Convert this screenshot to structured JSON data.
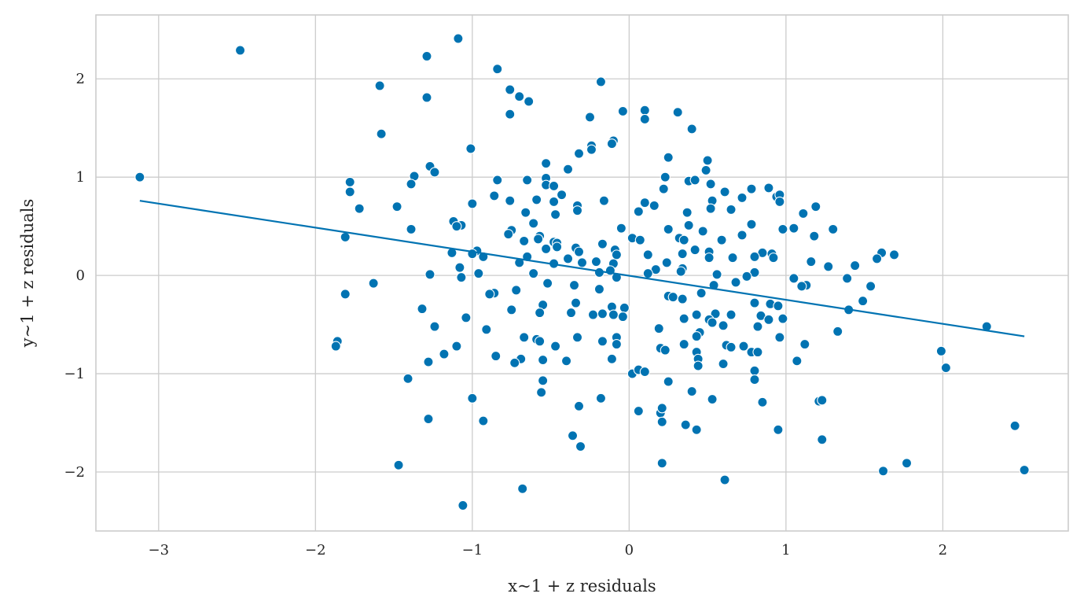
{
  "chart_data": {
    "type": "scatter",
    "xlabel": "x~1 + z residuals",
    "ylabel": "y~1 + z residuals",
    "xlim": [
      -3.4,
      2.8
    ],
    "ylim": [
      -2.6,
      2.65
    ],
    "xticks": [
      -3,
      -2,
      -1,
      0,
      1,
      2
    ],
    "yticks": [
      -2,
      -1,
      0,
      1,
      2
    ],
    "xtick_labels": [
      "−3",
      "−2",
      "−1",
      "0",
      "1",
      "2"
    ],
    "ytick_labels": [
      "−2",
      "−1",
      "0",
      "1",
      "2"
    ],
    "grid": true,
    "color": "#0173b2",
    "regression_line": {
      "x": [
        -3.12,
        2.52
      ],
      "y": [
        0.76,
        -0.62
      ]
    },
    "points": [
      [
        -3.12,
        1.0
      ],
      [
        -2.48,
        2.29
      ],
      [
        -1.09,
        2.41
      ],
      [
        -1.29,
        2.23
      ],
      [
        -0.84,
        2.1
      ],
      [
        -1.59,
        1.93
      ],
      [
        -0.18,
        1.97
      ],
      [
        -0.76,
        1.89
      ],
      [
        -0.7,
        1.82
      ],
      [
        -1.29,
        1.81
      ],
      [
        -0.64,
        1.77
      ],
      [
        0.1,
        1.68
      ],
      [
        0.31,
        1.66
      ],
      [
        -0.04,
        1.67
      ],
      [
        -0.76,
        1.64
      ],
      [
        -0.25,
        1.61
      ],
      [
        0.1,
        1.59
      ],
      [
        0.4,
        1.49
      ],
      [
        -1.58,
        1.44
      ],
      [
        -0.1,
        1.37
      ],
      [
        -0.11,
        1.34
      ],
      [
        -0.24,
        1.32
      ],
      [
        -0.24,
        1.28
      ],
      [
        -1.01,
        1.29
      ],
      [
        -0.32,
        1.24
      ],
      [
        0.25,
        1.2
      ],
      [
        0.5,
        1.17
      ],
      [
        -0.53,
        1.14
      ],
      [
        0.49,
        1.07
      ],
      [
        -1.27,
        1.11
      ],
      [
        -1.24,
        1.05
      ],
      [
        -0.39,
        1.08
      ],
      [
        -1.37,
        1.01
      ],
      [
        0.23,
        1.0
      ],
      [
        -0.53,
        0.99
      ],
      [
        -0.65,
        0.97
      ],
      [
        -0.84,
        0.97
      ],
      [
        0.38,
        0.96
      ],
      [
        0.42,
        0.97
      ],
      [
        -1.78,
        0.95
      ],
      [
        -1.39,
        0.93
      ],
      [
        0.52,
        0.93
      ],
      [
        -0.53,
        0.92
      ],
      [
        -0.48,
        0.91
      ],
      [
        0.89,
        0.89
      ],
      [
        0.78,
        0.88
      ],
      [
        0.22,
        0.88
      ],
      [
        -0.43,
        0.82
      ],
      [
        -0.86,
        0.81
      ],
      [
        0.94,
        0.8
      ],
      [
        -1.78,
        0.85
      ],
      [
        0.61,
        0.85
      ],
      [
        0.96,
        0.82
      ],
      [
        0.72,
        0.79
      ],
      [
        -0.16,
        0.76
      ],
      [
        0.53,
        0.76
      ],
      [
        -0.76,
        0.76
      ],
      [
        -0.59,
        0.77
      ],
      [
        0.96,
        0.75
      ],
      [
        -0.33,
        0.71
      ],
      [
        0.1,
        0.74
      ],
      [
        -0.48,
        0.75
      ],
      [
        -0.66,
        0.64
      ],
      [
        -1.48,
        0.7
      ],
      [
        0.16,
        0.71
      ],
      [
        -1.72,
        0.68
      ],
      [
        0.52,
        0.68
      ],
      [
        0.65,
        0.67
      ],
      [
        -1.0,
        0.73
      ],
      [
        1.19,
        0.7
      ],
      [
        -0.33,
        0.66
      ],
      [
        0.37,
        0.64
      ],
      [
        -0.47,
        0.62
      ],
      [
        1.11,
        0.63
      ],
      [
        0.06,
        0.65
      ],
      [
        -1.12,
        0.55
      ],
      [
        0.78,
        0.52
      ],
      [
        -0.61,
        0.53
      ],
      [
        1.05,
        0.48
      ],
      [
        0.38,
        0.51
      ],
      [
        0.25,
        0.47
      ],
      [
        0.98,
        0.47
      ],
      [
        -1.39,
        0.47
      ],
      [
        1.3,
        0.47
      ],
      [
        -1.07,
        0.51
      ],
      [
        -1.1,
        0.5
      ],
      [
        -0.75,
        0.46
      ],
      [
        -0.05,
        0.48
      ],
      [
        0.47,
        0.45
      ],
      [
        0.72,
        0.41
      ],
      [
        -0.77,
        0.42
      ],
      [
        -0.57,
        0.4
      ],
      [
        -1.81,
        0.39
      ],
      [
        0.02,
        0.38
      ],
      [
        -0.58,
        0.37
      ],
      [
        0.32,
        0.38
      ],
      [
        1.18,
        0.4
      ],
      [
        0.35,
        0.36
      ],
      [
        0.07,
        0.36
      ],
      [
        0.59,
        0.36
      ],
      [
        -0.67,
        0.35
      ],
      [
        -0.48,
        0.34
      ],
      [
        -0.46,
        0.33
      ],
      [
        -0.34,
        0.28
      ],
      [
        -0.09,
        0.26
      ],
      [
        -0.17,
        0.32
      ],
      [
        0.42,
        0.26
      ],
      [
        0.91,
        0.22
      ],
      [
        0.85,
        0.23
      ],
      [
        0.34,
        0.22
      ],
      [
        -0.32,
        0.24
      ],
      [
        -0.46,
        0.29
      ],
      [
        -0.53,
        0.27
      ],
      [
        -0.97,
        0.25
      ],
      [
        -1.0,
        0.22
      ],
      [
        -1.13,
        0.23
      ],
      [
        -0.93,
        0.19
      ],
      [
        -0.39,
        0.17
      ],
      [
        0.66,
        0.18
      ],
      [
        0.8,
        0.19
      ],
      [
        0.92,
        0.18
      ],
      [
        1.16,
        0.14
      ],
      [
        -0.08,
        0.21
      ],
      [
        0.12,
        0.21
      ],
      [
        0.51,
        0.24
      ],
      [
        0.51,
        0.18
      ],
      [
        -0.65,
        0.19
      ],
      [
        1.61,
        0.23
      ],
      [
        1.69,
        0.21
      ],
      [
        1.44,
        0.1
      ],
      [
        1.58,
        0.17
      ],
      [
        -0.7,
        0.13
      ],
      [
        -0.3,
        0.13
      ],
      [
        -0.48,
        0.12
      ],
      [
        -0.1,
        0.12
      ],
      [
        -0.21,
        0.14
      ],
      [
        0.24,
        0.13
      ],
      [
        1.27,
        0.09
      ],
      [
        0.34,
        0.07
      ],
      [
        -1.08,
        0.08
      ],
      [
        -0.61,
        0.02
      ],
      [
        -0.96,
        0.02
      ],
      [
        0.17,
        0.06
      ],
      [
        -0.19,
        0.03
      ],
      [
        0.8,
        0.03
      ],
      [
        -0.12,
        0.05
      ],
      [
        0.33,
        0.04
      ],
      [
        0.56,
        0.01
      ],
      [
        0.75,
        -0.01
      ],
      [
        -0.08,
        -0.02
      ],
      [
        1.05,
        -0.03
      ],
      [
        1.13,
        -0.1
      ],
      [
        1.39,
        -0.03
      ],
      [
        -1.07,
        -0.02
      ],
      [
        -1.27,
        0.01
      ],
      [
        0.12,
        0.02
      ],
      [
        -0.35,
        -0.1
      ],
      [
        -0.52,
        -0.08
      ],
      [
        0.68,
        -0.07
      ],
      [
        -1.63,
        -0.08
      ],
      [
        0.54,
        -0.1
      ],
      [
        1.1,
        -0.11
      ],
      [
        1.54,
        -0.11
      ],
      [
        -0.19,
        -0.14
      ],
      [
        -0.86,
        -0.18
      ],
      [
        -0.72,
        -0.15
      ],
      [
        0.46,
        -0.18
      ],
      [
        0.25,
        -0.21
      ],
      [
        0.28,
        -0.22
      ],
      [
        0.34,
        -0.24
      ],
      [
        -0.89,
        -0.19
      ],
      [
        1.49,
        -0.26
      ],
      [
        -1.81,
        -0.19
      ],
      [
        -0.55,
        -0.3
      ],
      [
        -0.34,
        -0.28
      ],
      [
        0.8,
        -0.28
      ],
      [
        0.9,
        -0.29
      ],
      [
        0.95,
        -0.31
      ],
      [
        -0.11,
        -0.32
      ],
      [
        -0.03,
        -0.33
      ],
      [
        1.4,
        -0.35
      ],
      [
        -1.32,
        -0.34
      ],
      [
        -0.75,
        -0.35
      ],
      [
        -0.37,
        -0.38
      ],
      [
        -0.23,
        -0.4
      ],
      [
        -0.57,
        -0.38
      ],
      [
        -0.17,
        -0.39
      ],
      [
        0.43,
        -0.4
      ],
      [
        0.55,
        -0.39
      ],
      [
        0.65,
        -0.4
      ],
      [
        0.84,
        -0.41
      ],
      [
        0.89,
        -0.45
      ],
      [
        0.98,
        -0.44
      ],
      [
        0.51,
        -0.45
      ],
      [
        0.53,
        -0.48
      ],
      [
        0.35,
        -0.44
      ],
      [
        -0.1,
        -0.4
      ],
      [
        -0.04,
        -0.42
      ],
      [
        -1.04,
        -0.43
      ],
      [
        0.19,
        -0.54
      ],
      [
        0.6,
        -0.51
      ],
      [
        -1.24,
        -0.52
      ],
      [
        -0.91,
        -0.55
      ],
      [
        1.33,
        -0.57
      ],
      [
        0.45,
        -0.58
      ],
      [
        0.43,
        -0.62
      ],
      [
        0.82,
        -0.52
      ],
      [
        0.96,
        -0.63
      ],
      [
        -0.08,
        -0.63
      ],
      [
        -0.33,
        -0.63
      ],
      [
        -0.67,
        -0.63
      ],
      [
        -0.59,
        -0.65
      ],
      [
        -0.57,
        -0.67
      ],
      [
        -0.17,
        -0.67
      ],
      [
        -0.08,
        -0.7
      ],
      [
        -1.1,
        -0.72
      ],
      [
        -1.86,
        -0.67
      ],
      [
        -1.87,
        -0.72
      ],
      [
        0.62,
        -0.71
      ],
      [
        0.73,
        -0.72
      ],
      [
        0.35,
        -0.7
      ],
      [
        -0.47,
        -0.72
      ],
      [
        0.2,
        -0.74
      ],
      [
        0.65,
        -0.73
      ],
      [
        1.12,
        -0.7
      ],
      [
        0.23,
        -0.76
      ],
      [
        0.43,
        -0.78
      ],
      [
        0.78,
        -0.78
      ],
      [
        0.82,
        -0.78
      ],
      [
        1.99,
        -0.77
      ],
      [
        -0.85,
        -0.82
      ],
      [
        -1.18,
        -0.8
      ],
      [
        -0.69,
        -0.85
      ],
      [
        -0.55,
        -0.86
      ],
      [
        -0.4,
        -0.87
      ],
      [
        -0.11,
        -0.85
      ],
      [
        0.44,
        -0.85
      ],
      [
        1.07,
        -0.87
      ],
      [
        -0.73,
        -0.89
      ],
      [
        0.44,
        -0.92
      ],
      [
        0.6,
        -0.9
      ],
      [
        2.02,
        -0.94
      ],
      [
        -1.28,
        -0.88
      ],
      [
        0.02,
        -1.0
      ],
      [
        0.06,
        -0.96
      ],
      [
        0.1,
        -0.98
      ],
      [
        0.8,
        -0.97
      ],
      [
        -0.55,
        -1.07
      ],
      [
        0.8,
        -1.06
      ],
      [
        0.25,
        -1.08
      ],
      [
        -1.41,
        -1.05
      ],
      [
        0.4,
        -1.18
      ],
      [
        -0.56,
        -1.19
      ],
      [
        -0.18,
        -1.25
      ],
      [
        -1.0,
        -1.25
      ],
      [
        0.53,
        -1.26
      ],
      [
        1.21,
        -1.28
      ],
      [
        1.23,
        -1.27
      ],
      [
        0.85,
        -1.29
      ],
      [
        -0.32,
        -1.33
      ],
      [
        0.06,
        -1.38
      ],
      [
        0.2,
        -1.4
      ],
      [
        0.21,
        -1.35
      ],
      [
        0.21,
        -1.49
      ],
      [
        -0.93,
        -1.48
      ],
      [
        -1.28,
        -1.46
      ],
      [
        0.36,
        -1.52
      ],
      [
        0.43,
        -1.57
      ],
      [
        0.95,
        -1.57
      ],
      [
        2.46,
        -1.53
      ],
      [
        -0.36,
        -1.63
      ],
      [
        1.23,
        -1.67
      ],
      [
        -0.31,
        -1.74
      ],
      [
        0.21,
        -1.91
      ],
      [
        1.77,
        -1.91
      ],
      [
        -1.47,
        -1.93
      ],
      [
        1.62,
        -1.99
      ],
      [
        2.52,
        -1.98
      ],
      [
        0.61,
        -2.08
      ],
      [
        -0.68,
        -2.17
      ],
      [
        -1.06,
        -2.34
      ],
      [
        2.28,
        -0.52
      ]
    ]
  }
}
